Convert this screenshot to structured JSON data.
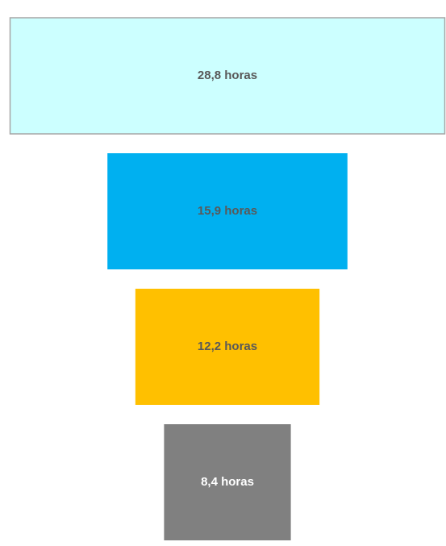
{
  "chart_data": {
    "type": "funnel",
    "values": [
      28.8,
      15.9,
      12.2,
      8.4
    ],
    "value_labels": [
      "28,8 horas",
      "15,9 horas",
      "12,2 horas",
      "8,4 horas"
    ],
    "colors": [
      "#ccffff",
      "#00b0f0",
      "#ffc000",
      "#808080"
    ],
    "label_colors": [
      "#595959",
      "#595959",
      "#595959",
      "#ffffff"
    ]
  }
}
